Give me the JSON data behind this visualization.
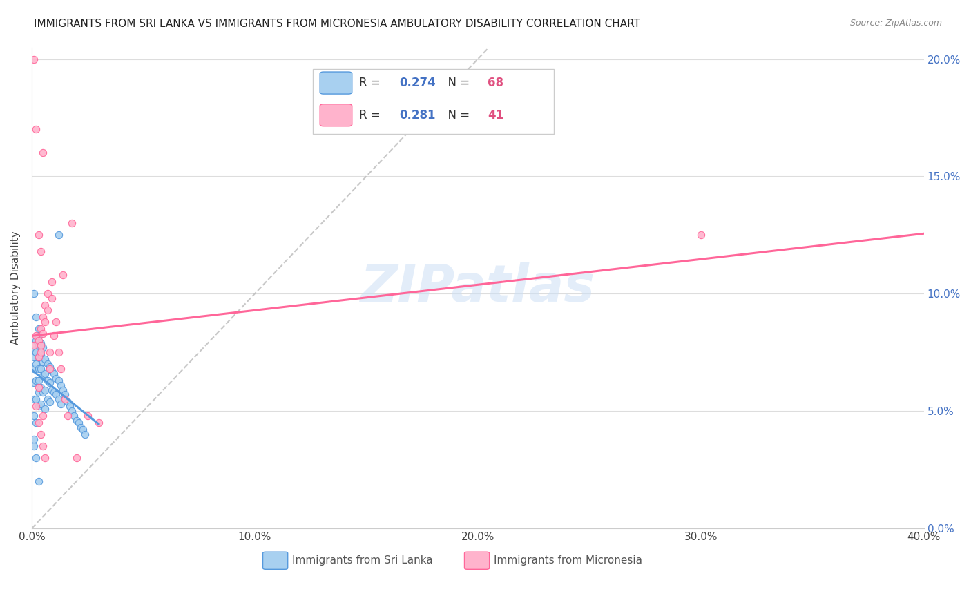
{
  "title": "IMMIGRANTS FROM SRI LANKA VS IMMIGRANTS FROM MICRONESIA AMBULATORY DISABILITY CORRELATION CHART",
  "source": "Source: ZipAtlas.com",
  "ylabel_label": "Ambulatory Disability",
  "legend_label1": "Immigrants from Sri Lanka",
  "legend_label2": "Immigrants from Micronesia",
  "R1": 0.274,
  "N1": 68,
  "R2": 0.281,
  "N2": 41,
  "color1": "#a8d0f0",
  "color1_line": "#5599dd",
  "color2": "#ffb3cc",
  "color2_line": "#ff6699",
  "dashed_line_color": "#bbbbbb",
  "watermark": "ZIPatlas",
  "xmin": 0.0,
  "xmax": 0.4,
  "ymin": 0.0,
  "ymax": 0.205,
  "sri_lanka_x": [
    0.001,
    0.001,
    0.001,
    0.001,
    0.001,
    0.001,
    0.001,
    0.002,
    0.002,
    0.002,
    0.002,
    0.002,
    0.002,
    0.003,
    0.003,
    0.003,
    0.003,
    0.003,
    0.003,
    0.003,
    0.004,
    0.004,
    0.004,
    0.004,
    0.004,
    0.005,
    0.005,
    0.005,
    0.005,
    0.006,
    0.006,
    0.006,
    0.006,
    0.007,
    0.007,
    0.007,
    0.008,
    0.008,
    0.008,
    0.009,
    0.009,
    0.01,
    0.01,
    0.011,
    0.011,
    0.012,
    0.012,
    0.013,
    0.013,
    0.014,
    0.015,
    0.016,
    0.017,
    0.018,
    0.019,
    0.02,
    0.021,
    0.022,
    0.023,
    0.024,
    0.001,
    0.002,
    0.003,
    0.004,
    0.012,
    0.001,
    0.002,
    0.003
  ],
  "sri_lanka_y": [
    0.076,
    0.073,
    0.068,
    0.062,
    0.055,
    0.048,
    0.035,
    0.08,
    0.075,
    0.07,
    0.063,
    0.055,
    0.045,
    0.082,
    0.078,
    0.073,
    0.068,
    0.063,
    0.058,
    0.052,
    0.079,
    0.074,
    0.068,
    0.06,
    0.053,
    0.077,
    0.071,
    0.065,
    0.058,
    0.072,
    0.066,
    0.059,
    0.051,
    0.07,
    0.063,
    0.055,
    0.069,
    0.062,
    0.054,
    0.067,
    0.059,
    0.066,
    0.058,
    0.064,
    0.057,
    0.063,
    0.055,
    0.061,
    0.053,
    0.059,
    0.057,
    0.054,
    0.052,
    0.05,
    0.048,
    0.046,
    0.045,
    0.043,
    0.042,
    0.04,
    0.1,
    0.09,
    0.085,
    0.078,
    0.125,
    0.038,
    0.03,
    0.02
  ],
  "micronesia_x": [
    0.001,
    0.001,
    0.002,
    0.002,
    0.003,
    0.003,
    0.003,
    0.004,
    0.004,
    0.004,
    0.005,
    0.005,
    0.005,
    0.006,
    0.006,
    0.007,
    0.007,
    0.008,
    0.008,
    0.009,
    0.009,
    0.01,
    0.011,
    0.012,
    0.013,
    0.014,
    0.015,
    0.016,
    0.018,
    0.02,
    0.025,
    0.03,
    0.003,
    0.004,
    0.005,
    0.002,
    0.003,
    0.004,
    0.005,
    0.006,
    0.3
  ],
  "micronesia_y": [
    0.078,
    0.2,
    0.082,
    0.17,
    0.08,
    0.125,
    0.073,
    0.085,
    0.118,
    0.078,
    0.09,
    0.083,
    0.16,
    0.095,
    0.088,
    0.1,
    0.093,
    0.075,
    0.068,
    0.105,
    0.098,
    0.082,
    0.088,
    0.075,
    0.068,
    0.108,
    0.055,
    0.048,
    0.13,
    0.03,
    0.048,
    0.045,
    0.06,
    0.075,
    0.048,
    0.052,
    0.045,
    0.04,
    0.035,
    0.03,
    0.125
  ]
}
